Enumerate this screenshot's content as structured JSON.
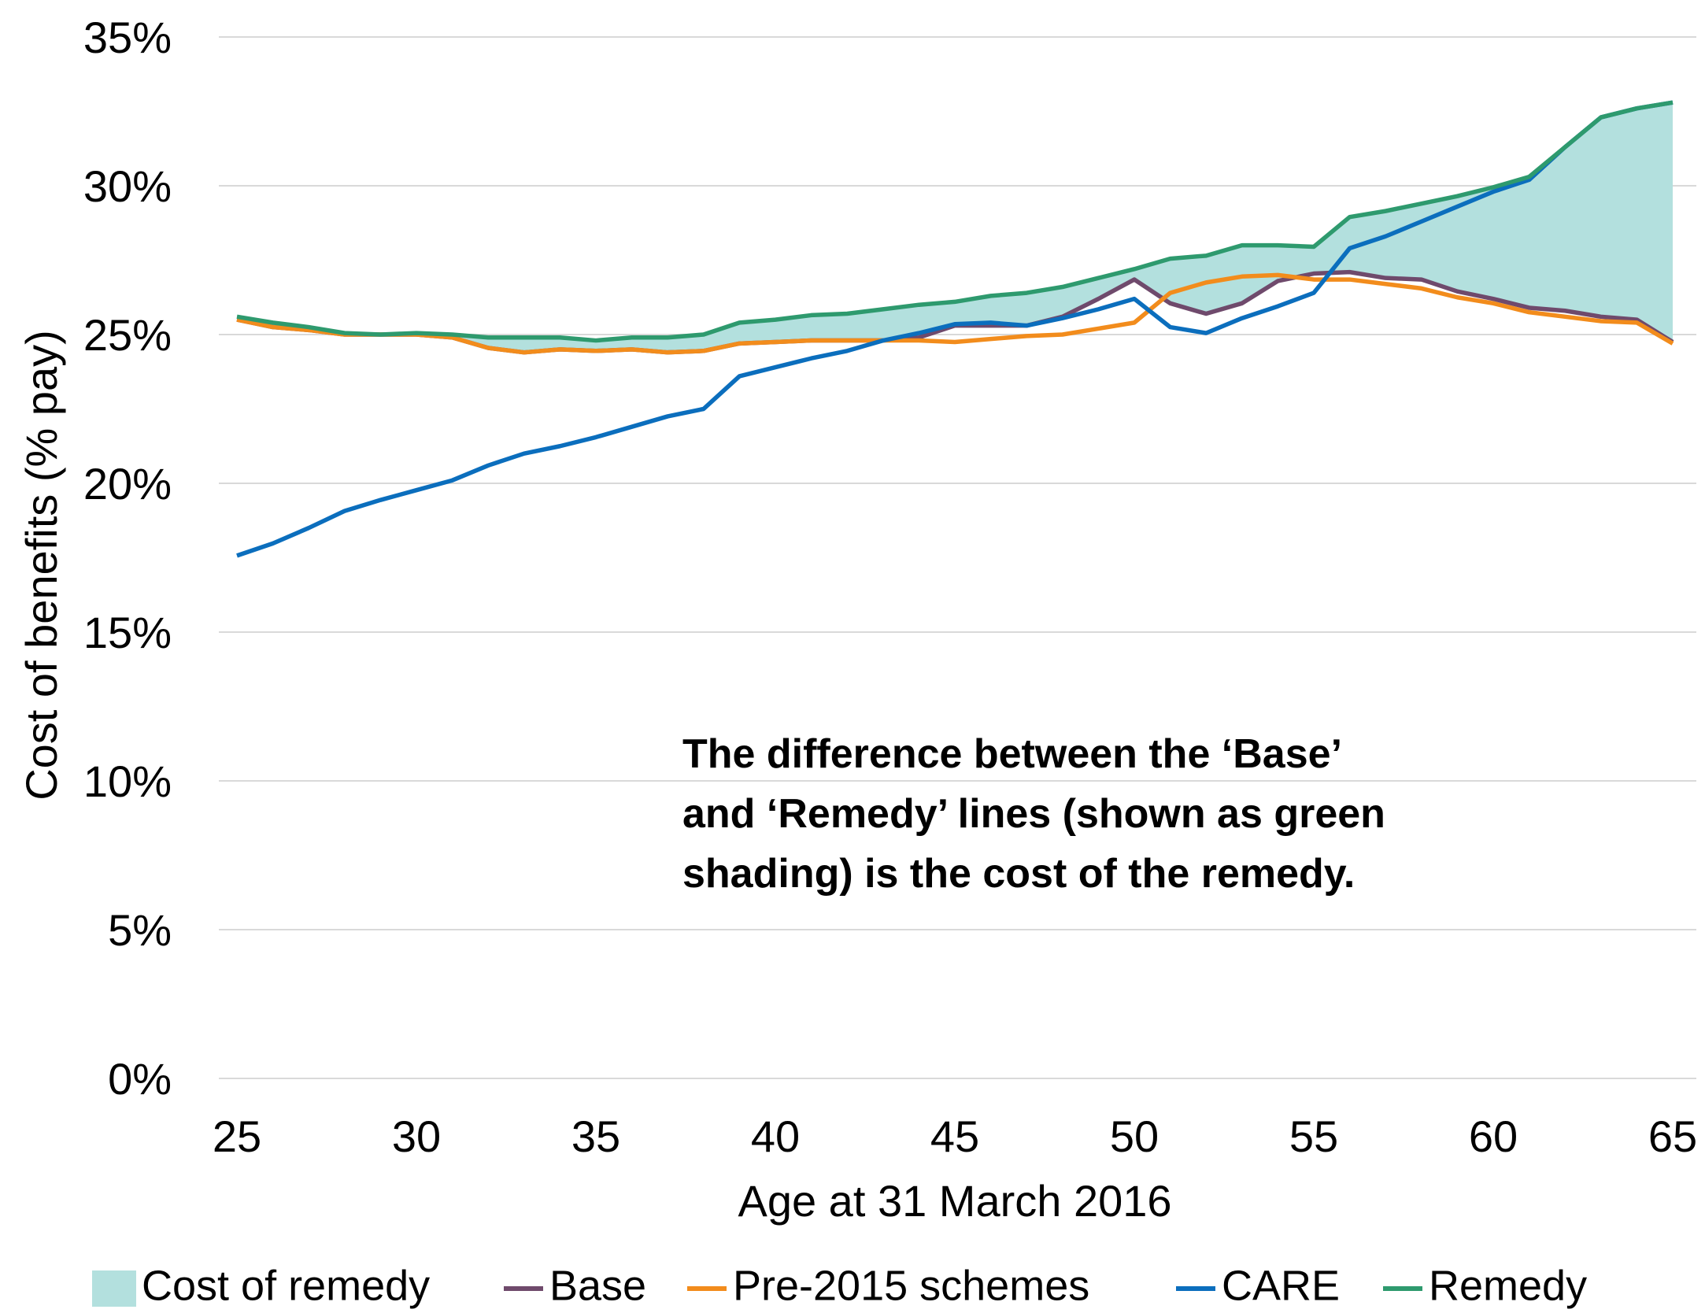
{
  "chart_data": {
    "type": "line",
    "x_label": "Age at 31 March 2016",
    "y_label": "Cost of benefits (% pay)",
    "annotation": [
      "The difference between the ‘Base’",
      "and ‘Remedy’ lines (shown as green",
      "shading) is the cost of the remedy."
    ],
    "x": [
      25,
      26,
      27,
      28,
      29,
      30,
      31,
      32,
      33,
      34,
      35,
      36,
      37,
      38,
      39,
      40,
      41,
      42,
      43,
      44,
      45,
      46,
      47,
      48,
      49,
      50,
      51,
      52,
      53,
      54,
      55,
      56,
      57,
      58,
      59,
      60,
      61,
      62,
      63,
      64,
      65
    ],
    "xlim": [
      25,
      65
    ],
    "xticks": [
      25,
      30,
      35,
      40,
      45,
      50,
      55,
      60,
      65
    ],
    "ylim": [
      0,
      35
    ],
    "yticks": [
      {
        "value": 0,
        "label": "0%"
      },
      {
        "value": 5,
        "label": "5%"
      },
      {
        "value": 10,
        "label": "10%"
      },
      {
        "value": 15,
        "label": "15%"
      },
      {
        "value": 20,
        "label": "20%"
      },
      {
        "value": 25,
        "label": "25%"
      },
      {
        "value": 30,
        "label": "30%"
      },
      {
        "value": 35,
        "label": "35%"
      }
    ],
    "grid": true,
    "area": {
      "name": "Cost of remedy",
      "color": "#b3e0de"
    },
    "series": [
      {
        "name": "Base",
        "color": "#6f4a6c",
        "values": [
          25.5,
          25.25,
          25.15,
          25.0,
          25.0,
          25.0,
          24.9,
          24.55,
          24.4,
          24.5,
          24.45,
          24.5,
          24.4,
          24.45,
          24.7,
          24.75,
          24.8,
          24.8,
          24.8,
          24.9,
          25.3,
          25.3,
          25.3,
          25.6,
          26.2,
          26.85,
          26.05,
          25.7,
          26.05,
          26.8,
          27.05,
          27.1,
          26.9,
          26.85,
          26.45,
          26.2,
          25.9,
          25.8,
          25.6,
          25.5,
          24.75
        ]
      },
      {
        "name": "Pre-2015 schemes",
        "color": "#f28c1c",
        "values": [
          25.5,
          25.25,
          25.15,
          25.0,
          25.0,
          25.0,
          24.9,
          24.55,
          24.4,
          24.5,
          24.45,
          24.5,
          24.4,
          24.45,
          24.7,
          24.75,
          24.8,
          24.8,
          24.8,
          24.8,
          24.75,
          24.85,
          24.95,
          25.0,
          25.2,
          25.4,
          26.4,
          26.75,
          26.95,
          27.0,
          26.85,
          26.85,
          26.7,
          26.55,
          26.25,
          26.05,
          25.75,
          25.6,
          25.45,
          25.4,
          24.7
        ]
      },
      {
        "name": "CARE",
        "color": "#0b6ebd",
        "values": [
          17.57,
          17.98,
          18.5,
          19.07,
          19.44,
          19.77,
          20.1,
          20.6,
          21.0,
          21.25,
          21.55,
          21.9,
          22.25,
          22.5,
          23.6,
          23.9,
          24.2,
          24.45,
          24.8,
          25.05,
          25.35,
          25.4,
          25.3,
          25.55,
          25.85,
          26.2,
          25.25,
          25.05,
          25.55,
          25.95,
          26.4,
          27.9,
          28.3,
          28.8,
          29.3,
          29.8,
          30.2,
          31.3,
          32.3,
          32.6,
          32.8
        ]
      },
      {
        "name": "Remedy",
        "color": "#2e9a6e",
        "values": [
          25.6,
          25.4,
          25.25,
          25.05,
          25.0,
          25.05,
          25.0,
          24.9,
          24.9,
          24.9,
          24.8,
          24.9,
          24.9,
          25.0,
          25.4,
          25.5,
          25.65,
          25.7,
          25.85,
          26.0,
          26.1,
          26.3,
          26.4,
          26.6,
          26.9,
          27.2,
          27.55,
          27.65,
          28.0,
          28.0,
          27.95,
          28.95,
          29.15,
          29.4,
          29.65,
          29.95,
          30.3,
          31.3,
          32.3,
          32.6,
          32.8
        ]
      }
    ]
  }
}
